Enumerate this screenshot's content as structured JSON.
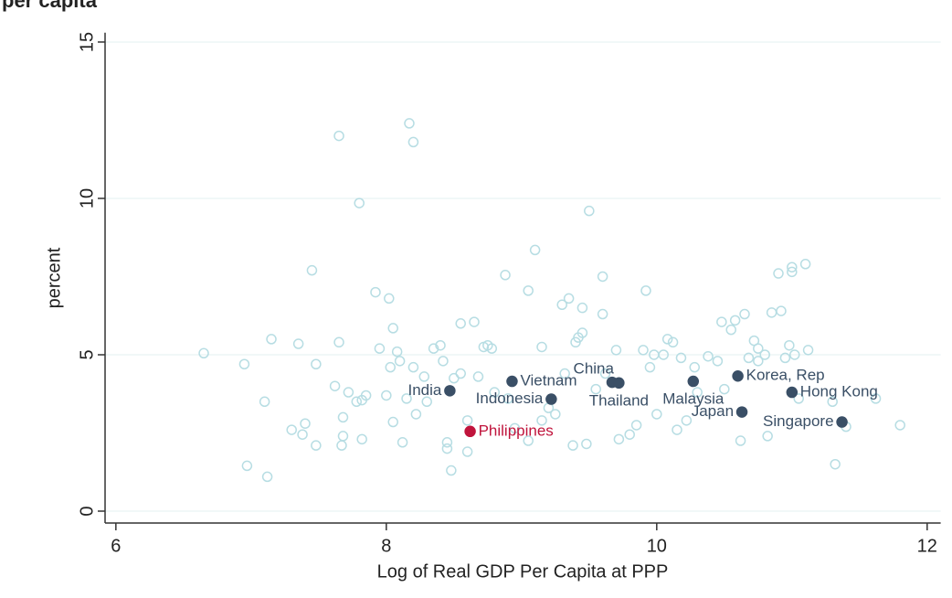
{
  "chart_data": {
    "type": "scatter",
    "title": "per capita",
    "xlabel": "Log of Real GDP Per Capita at PPP",
    "ylabel": "percent",
    "xlim": [
      5.92,
      12.1
    ],
    "ylim": [
      -0.38,
      15.3
    ],
    "xticks": [
      6,
      8,
      10,
      12
    ],
    "yticks": [
      0,
      5,
      10,
      15
    ],
    "grid": true,
    "series": [
      {
        "color": "#b7dde3",
        "marker": "hollow",
        "x": [
          6.65,
          6.95,
          6.97,
          7.1,
          7.12,
          7.15,
          7.3,
          7.35,
          7.38,
          7.4,
          7.45,
          7.48,
          7.48,
          7.65,
          7.62,
          7.65,
          7.68,
          7.67,
          7.68,
          7.72,
          7.78,
          7.8,
          7.82,
          7.82,
          7.85,
          7.92,
          7.95,
          8.0,
          8.02,
          8.05,
          8.03,
          8.05,
          8.08,
          8.1,
          8.12,
          8.15,
          8.17,
          8.2,
          8.2,
          8.22,
          8.28,
          8.3,
          8.35,
          8.4,
          8.42,
          8.45,
          8.45,
          8.55,
          8.55,
          8.6,
          8.5,
          8.48,
          8.6,
          8.65,
          8.68,
          8.72,
          8.75,
          8.78,
          8.8,
          8.88,
          8.9,
          8.95,
          9.05,
          9.05,
          9.1,
          9.15,
          9.15,
          9.2,
          9.25,
          9.3,
          9.32,
          9.35,
          9.38,
          9.4,
          9.42,
          9.45,
          9.45,
          9.48,
          9.5,
          9.55,
          9.6,
          9.6,
          9.62,
          9.7,
          9.72,
          9.8,
          9.85,
          9.9,
          9.92,
          9.95,
          9.98,
          10.0,
          10.05,
          10.08,
          10.12,
          10.15,
          10.18,
          10.22,
          10.28,
          10.3,
          10.38,
          10.45,
          10.48,
          10.5,
          10.55,
          10.58,
          10.62,
          10.65,
          10.68,
          10.72,
          10.75,
          10.75,
          10.8,
          10.82,
          10.85,
          10.9,
          10.92,
          10.95,
          10.98,
          11.0,
          11.0,
          11.02,
          11.05,
          11.1,
          11.12,
          11.3,
          11.32,
          11.4,
          11.62,
          11.8
        ],
        "values": [
          5.05,
          4.7,
          1.45,
          3.5,
          1.1,
          5.5,
          2.6,
          5.35,
          2.45,
          2.8,
          7.7,
          4.7,
          2.1,
          12.0,
          4.0,
          5.4,
          3.0,
          2.1,
          2.4,
          3.8,
          3.5,
          9.85,
          3.55,
          2.3,
          3.7,
          7.0,
          5.2,
          3.7,
          6.8,
          5.85,
          4.6,
          2.85,
          5.1,
          4.8,
          2.2,
          3.6,
          12.4,
          11.8,
          4.6,
          3.1,
          4.3,
          3.5,
          5.2,
          5.3,
          4.8,
          2.0,
          2.2,
          4.4,
          6.0,
          2.9,
          4.25,
          1.3,
          1.9,
          6.05,
          4.3,
          5.25,
          5.3,
          5.2,
          3.8,
          7.55,
          3.6,
          2.65,
          7.05,
          2.25,
          8.35,
          5.25,
          2.9,
          3.3,
          3.1,
          6.6,
          4.4,
          6.8,
          2.1,
          5.4,
          5.55,
          6.5,
          5.7,
          2.15,
          9.6,
          3.9,
          6.3,
          7.5,
          4.4,
          5.15,
          2.3,
          2.45,
          2.75,
          5.15,
          7.05,
          4.6,
          5.0,
          3.1,
          5.0,
          5.5,
          5.4,
          2.6,
          4.9,
          2.9,
          4.6,
          3.8,
          4.95,
          4.8,
          6.05,
          3.9,
          5.8,
          6.1,
          2.25,
          6.3,
          4.9,
          5.45,
          5.2,
          4.8,
          5.0,
          2.4,
          6.35,
          7.6,
          6.4,
          4.9,
          5.3,
          7.8,
          7.65,
          5.0,
          3.6,
          7.9,
          5.15,
          3.5,
          1.5,
          2.7,
          3.6,
          2.75
        ]
      },
      {
        "color": "#3a4f66",
        "marker": "filled",
        "x": [
          8.47,
          8.93,
          9.22,
          9.67,
          9.72,
          10.27,
          10.6,
          11.0,
          10.63,
          11.37
        ],
        "values": [
          3.85,
          4.15,
          3.58,
          4.12,
          4.1,
          4.15,
          4.32,
          3.8,
          3.17,
          2.85
        ],
        "labels": [
          "India",
          "Vietnam",
          "Indonesia",
          "China",
          "Thailand",
          "Malaysia",
          "Korea, Rep",
          "Hong Kong",
          "Japan",
          "Singapore"
        ]
      },
      {
        "color": "#c0143c",
        "marker": "filled",
        "x": [
          8.62
        ],
        "values": [
          2.55
        ],
        "labels": [
          "Philippines"
        ]
      }
    ]
  }
}
